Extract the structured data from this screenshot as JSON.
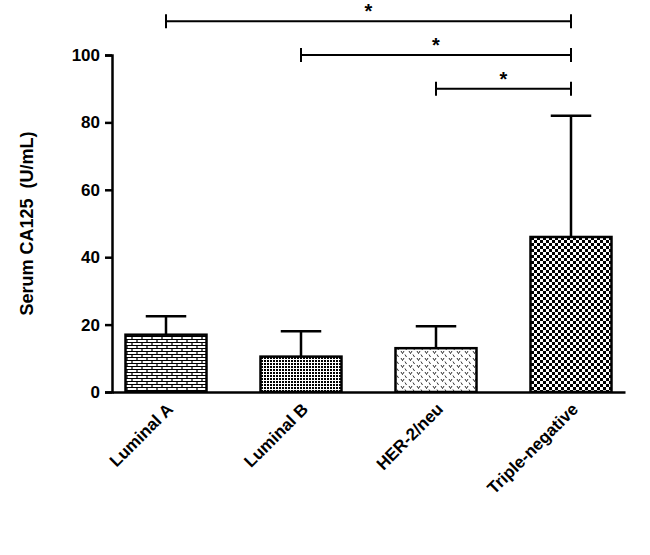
{
  "chart_data": {
    "type": "bar",
    "y_label": "Serum CA125  (U/mL)",
    "categories": [
      "Luminal A",
      "Luminal B",
      "HER-2/neu",
      "Triple-negative"
    ],
    "values": [
      17,
      10.5,
      13,
      46
    ],
    "errors": [
      5.5,
      7.5,
      6.5,
      36
    ],
    "color": "#000000",
    "ylim": [
      0,
      100
    ],
    "yticks": [
      0,
      20,
      40,
      60,
      80,
      100
    ],
    "grid": false,
    "annotations": [
      {
        "from": "Luminal A",
        "to": "Triple-negative",
        "y": 110,
        "text": "*"
      },
      {
        "from": "Luminal B",
        "to": "Triple-negative",
        "y": 100,
        "text": "*"
      },
      {
        "from": "HER-2/neu",
        "to": "Triple-negative",
        "y": 90,
        "text": "*"
      }
    ]
  }
}
